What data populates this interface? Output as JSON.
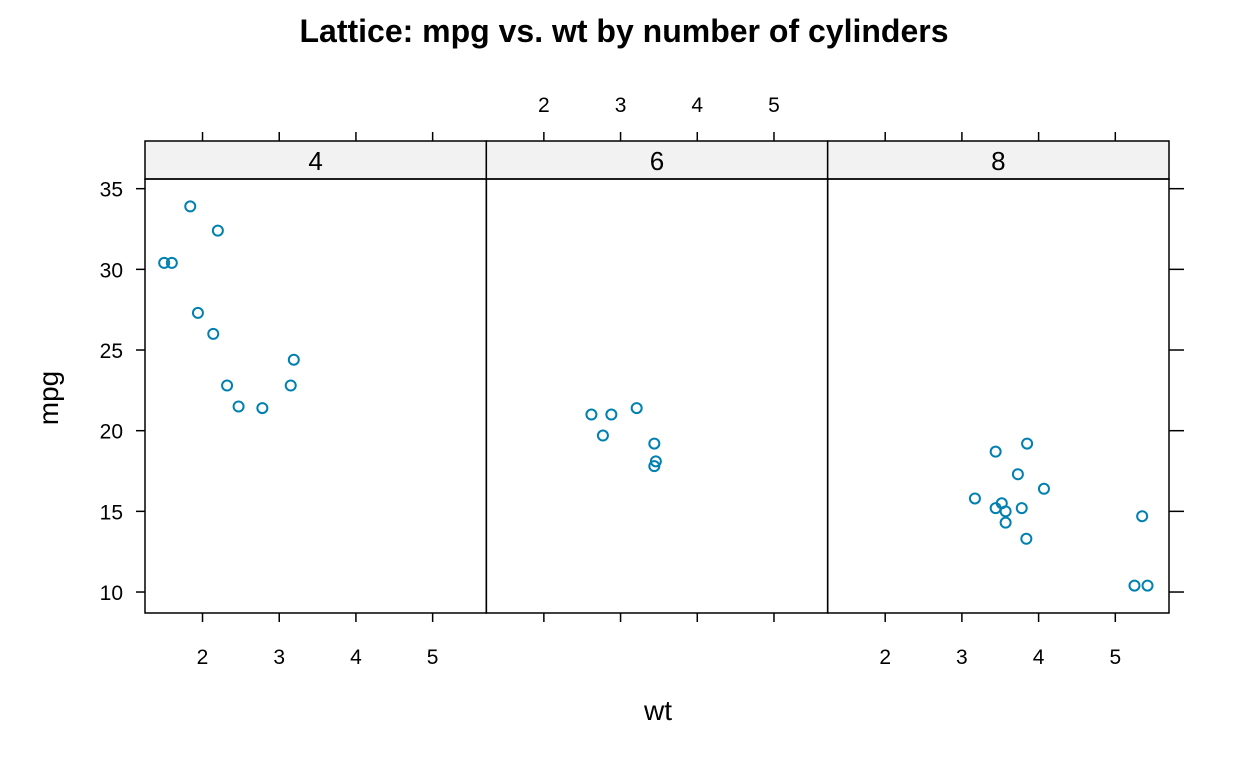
{
  "chart_data": {
    "type": "scatter",
    "title": "Lattice: mpg vs. wt by number of cylinders",
    "xlabel": "wt",
    "ylabel": "mpg",
    "xlim": [
      1.25,
      5.7
    ],
    "ylim": [
      8.7,
      35.6
    ],
    "x_ticks": [
      "2",
      "3",
      "4",
      "5"
    ],
    "y_ticks": [
      "10",
      "15",
      "20",
      "25",
      "30",
      "35"
    ],
    "point_color": "#0080b0",
    "strip_fill": "#f2f2f2",
    "panels": [
      {
        "strip_label": "4",
        "points": [
          {
            "x": 1.5,
            "y": 30.4
          },
          {
            "x": 1.6,
            "y": 30.4
          },
          {
            "x": 1.84,
            "y": 33.9
          },
          {
            "x": 2.2,
            "y": 32.4
          },
          {
            "x": 1.94,
            "y": 27.3
          },
          {
            "x": 2.14,
            "y": 26.0
          },
          {
            "x": 2.32,
            "y": 22.8
          },
          {
            "x": 2.47,
            "y": 21.5
          },
          {
            "x": 2.78,
            "y": 21.4
          },
          {
            "x": 3.15,
            "y": 22.8
          },
          {
            "x": 3.19,
            "y": 24.4
          }
        ]
      },
      {
        "strip_label": "6",
        "points": [
          {
            "x": 2.62,
            "y": 21.0
          },
          {
            "x": 2.77,
            "y": 19.7
          },
          {
            "x": 2.88,
            "y": 21.0
          },
          {
            "x": 3.21,
            "y": 21.4
          },
          {
            "x": 3.44,
            "y": 19.2
          },
          {
            "x": 3.46,
            "y": 18.1
          },
          {
            "x": 3.44,
            "y": 17.8
          }
        ]
      },
      {
        "strip_label": "8",
        "points": [
          {
            "x": 3.17,
            "y": 15.8
          },
          {
            "x": 3.44,
            "y": 18.7
          },
          {
            "x": 3.44,
            "y": 15.2
          },
          {
            "x": 3.52,
            "y": 15.5
          },
          {
            "x": 3.57,
            "y": 15.0
          },
          {
            "x": 3.57,
            "y": 14.3
          },
          {
            "x": 3.73,
            "y": 17.3
          },
          {
            "x": 3.78,
            "y": 15.2
          },
          {
            "x": 3.84,
            "y": 13.3
          },
          {
            "x": 3.85,
            "y": 19.2
          },
          {
            "x": 4.07,
            "y": 16.4
          },
          {
            "x": 5.25,
            "y": 10.4
          },
          {
            "x": 5.42,
            "y": 10.4
          },
          {
            "x": 5.35,
            "y": 14.7
          }
        ]
      }
    ]
  }
}
